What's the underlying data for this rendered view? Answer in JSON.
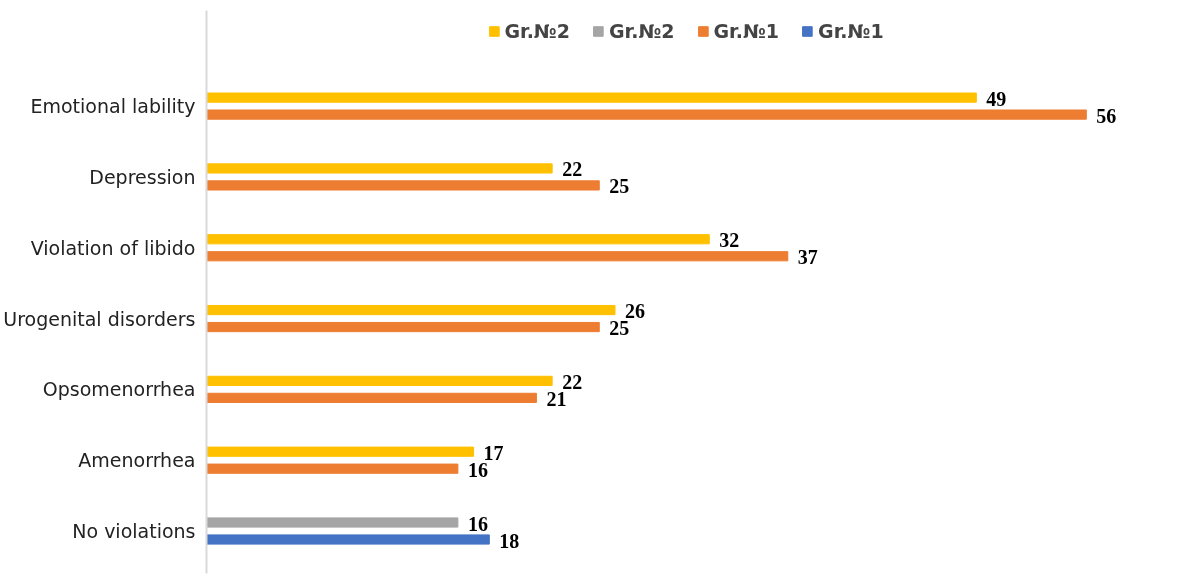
{
  "chart_data": {
    "type": "bar",
    "orientation": "horizontal",
    "categories": [
      "Emotional lability",
      "Depression",
      "Violation of libido",
      "Urogenital disorders",
      "Opsomenorrhea",
      "Amenorrhea",
      "No violations"
    ],
    "series": [
      {
        "name": "Gr.№2",
        "color": "#ffc000",
        "values": [
          49,
          22,
          32,
          26,
          22,
          17,
          null
        ]
      },
      {
        "name": "Gr.№2",
        "color": "#a5a5a5",
        "values": [
          null,
          null,
          null,
          null,
          null,
          null,
          16
        ]
      },
      {
        "name": "Gr.№1",
        "color": "#ed7d31",
        "values": [
          56,
          25,
          37,
          25,
          21,
          16,
          null
        ]
      },
      {
        "name": "Gr.№1",
        "color": "#4472c4",
        "values": [
          null,
          null,
          null,
          null,
          null,
          null,
          18
        ]
      }
    ],
    "data_labels": true,
    "legend": "top",
    "grid": false,
    "tick_labels": "y"
  }
}
